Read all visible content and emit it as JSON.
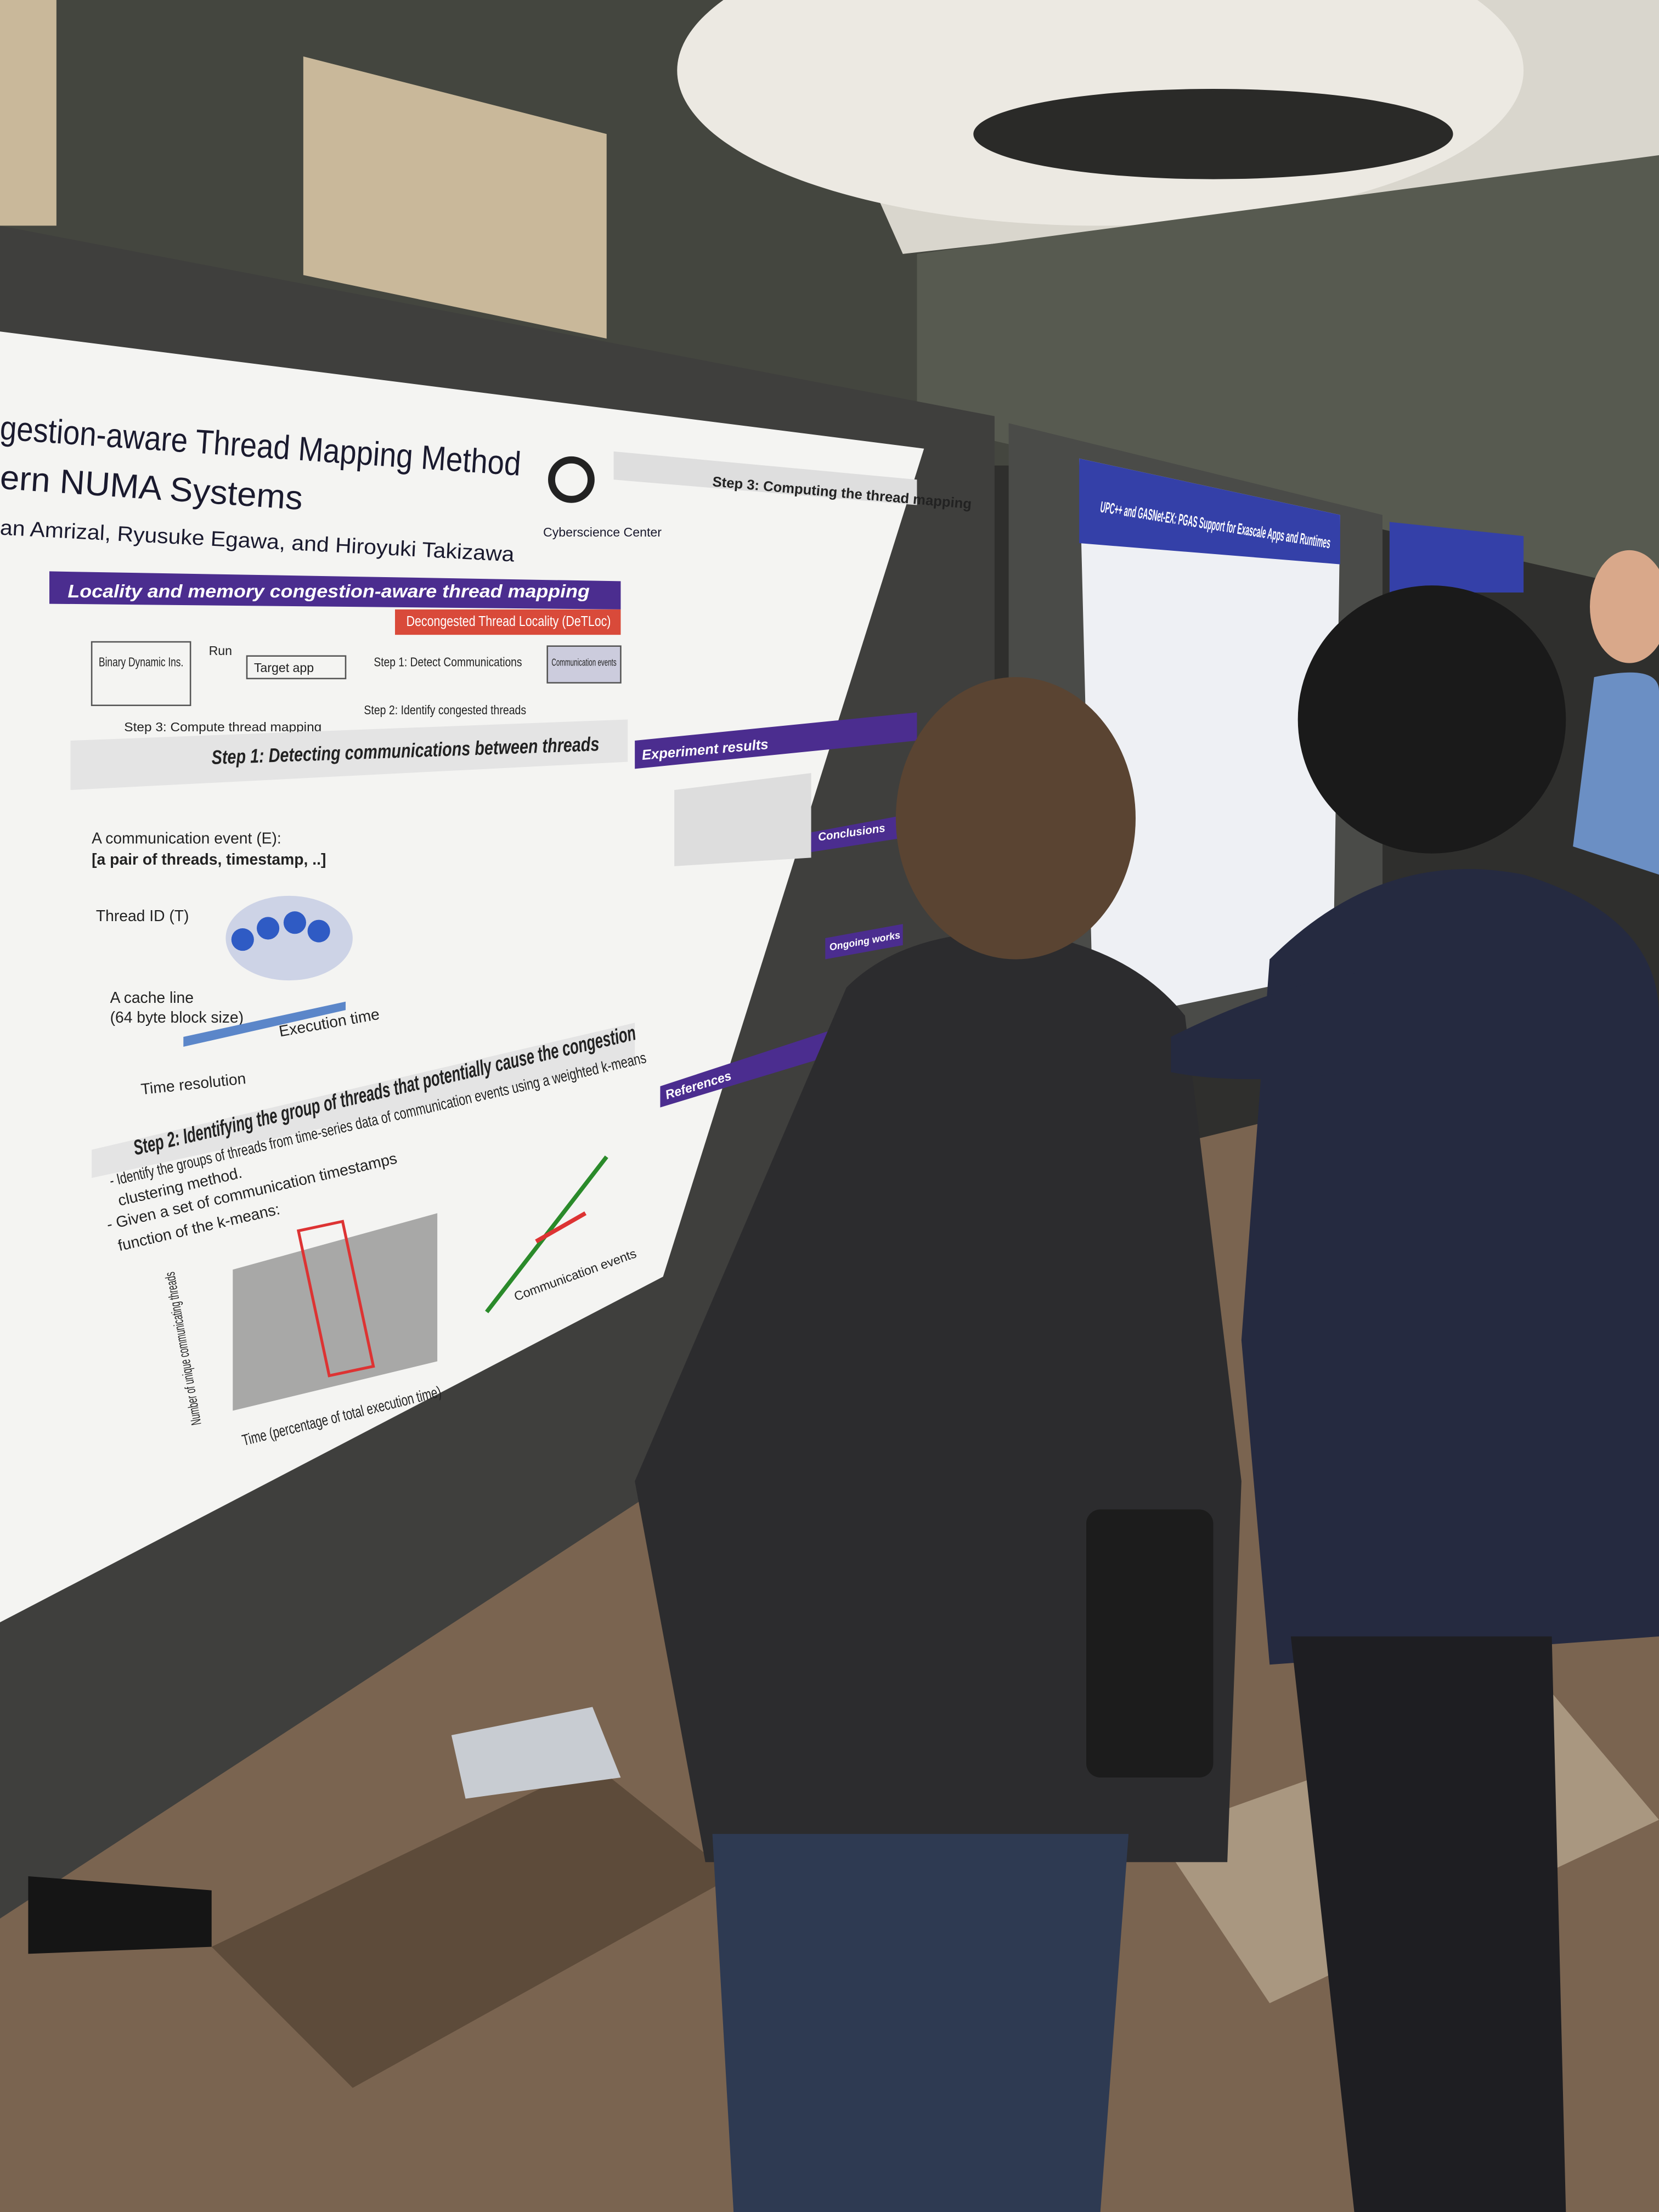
{
  "poster_main": {
    "title_line1": "gestion-aware Thread Mapping Method",
    "title_line2": "ern NUMA Systems",
    "authors": "an Amrizal, Ryusuke Egawa, and Hiroyuki Takizawa",
    "affiliation": "Cyberscience Center",
    "banner": "Locality and memory congestion-aware thread mapping",
    "subbanner": "Decongested Thread Locality (DeTLoc)",
    "flow": [
      "Binary Dynamic Ins.",
      "Run",
      "Target app",
      "Step 1: Detect Communications",
      "Communication events",
      "Step 2: Identify congested threads",
      "Step 3: Compute thread mapping"
    ],
    "step1": "Step 1: Detecting communications between threads",
    "event_label": "A communication event (E):",
    "event_def": "[a pair of threads, timestamp, ..]",
    "thread_id": "Thread ID (T)",
    "cache_line": "A cache line",
    "block_size": "(64 byte block size)",
    "execution_time": "Execution time",
    "time_resolution": "Time resolution",
    "step2": "Step 2: Identifying the group of threads that potentially cause the congestion",
    "step2_bullets": [
      "- Identify the groups of threads from time-series data of communication events using a weighted k-means",
      "clustering method.",
      "- Given a set of communication timestamps",
      "function of the k-means:"
    ],
    "x_axis": "Time (percentage of total execution time)",
    "y_axis": "Number of unique communicating threads",
    "communication_events": "Communication events",
    "step3": "Step 3: Computing the thread mapping",
    "experiment": "Experiment results",
    "conclusions": "Conclusions",
    "ongoing": "Ongoing works",
    "references": "References"
  },
  "poster_second": {
    "title": "UPC++ and GASNet-EX: PGAS Support for Exascale Apps and Runtimes"
  }
}
